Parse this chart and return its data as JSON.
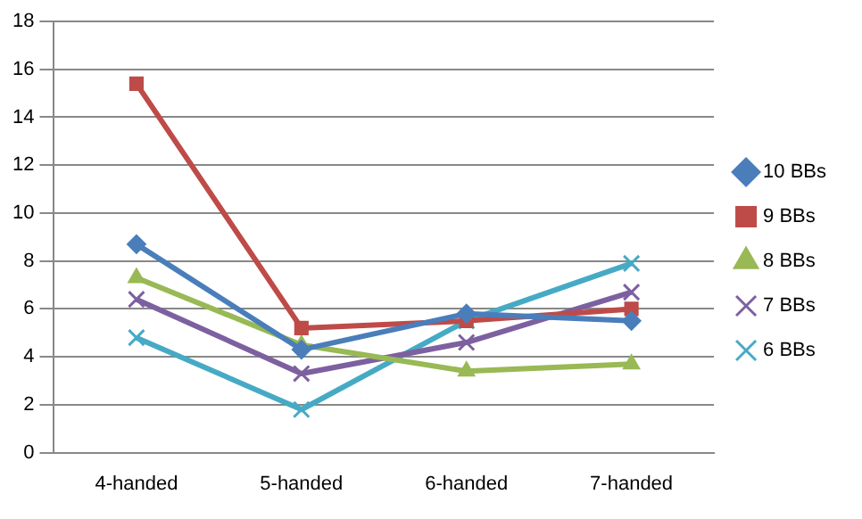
{
  "chart_data": {
    "type": "line",
    "categories": [
      "4-handed",
      "5-handed",
      "6-handed",
      "7-handed"
    ],
    "series": [
      {
        "name": "10 BBs",
        "color": "#4a7ebb",
        "marker": "diamond",
        "values": [
          8.7,
          4.3,
          5.8,
          5.5
        ]
      },
      {
        "name": "9 BBs",
        "color": "#be4b48",
        "marker": "square",
        "values": [
          15.4,
          5.2,
          5.5,
          6.0
        ]
      },
      {
        "name": "8 BBs",
        "color": "#98b954",
        "marker": "triangle",
        "values": [
          7.3,
          4.5,
          3.4,
          3.7
        ]
      },
      {
        "name": "7 BBs",
        "color": "#7d60a0",
        "marker": "cross",
        "values": [
          6.4,
          3.3,
          4.6,
          6.7
        ]
      },
      {
        "name": "6 BBs",
        "color": "#46aac5",
        "marker": "cross",
        "values": [
          4.8,
          1.8,
          5.5,
          7.9
        ]
      }
    ],
    "ylim": [
      0,
      18
    ],
    "yticks": [
      0,
      2,
      4,
      6,
      8,
      10,
      12,
      14,
      16,
      18
    ],
    "grid": "y",
    "legend": "right",
    "line_style": "solid"
  }
}
